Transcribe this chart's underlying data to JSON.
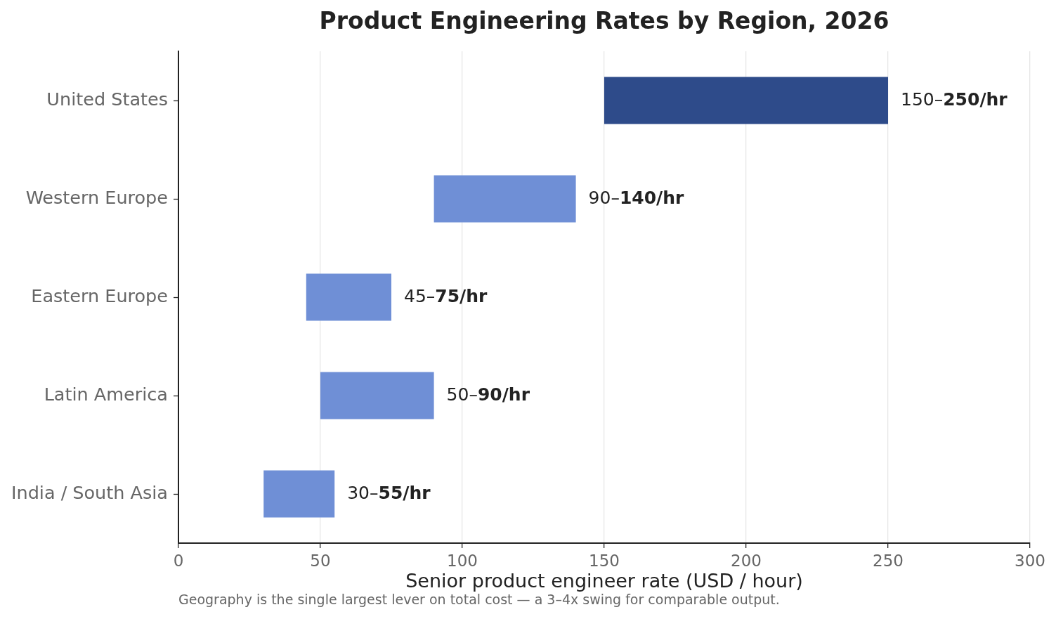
{
  "chart_data": {
    "type": "bar",
    "orientation": "horizontal",
    "title": "Product Engineering Rates by Region, 2026",
    "xlabel": "Senior product engineer rate (USD / hour)",
    "categories": [
      "United States",
      "Western Europe",
      "Eastern Europe",
      "Latin America",
      "India / South Asia"
    ],
    "base": [
      150,
      90,
      45,
      50,
      30
    ],
    "values": [
      100,
      50,
      30,
      40,
      25
    ],
    "colors": [
      "#2e4b8a",
      "#6f8fd6",
      "#6f8fd6",
      "#6f8fd6",
      "#6f8fd6"
    ],
    "value_labels": [
      "150–250/hr",
      "90–140/hr",
      "45–75/hr",
      "50–90/hr",
      "30–55/hr"
    ],
    "xlim": [
      0,
      300
    ],
    "xticks": [
      0,
      50,
      100,
      150,
      200,
      250,
      300
    ],
    "grid": "x",
    "legend": false,
    "annotations": [
      "Geography is the single largest lever on total cost — a 3–4x swing for comparable output."
    ]
  }
}
